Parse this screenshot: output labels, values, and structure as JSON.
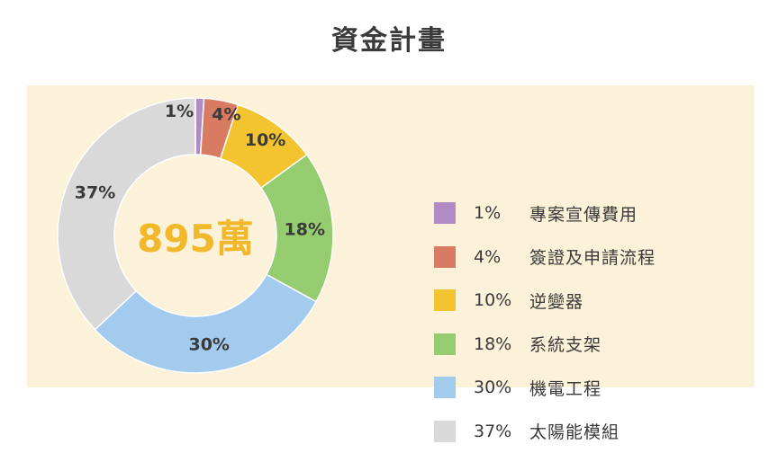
{
  "title": "資金計畫",
  "center_label": "895萬",
  "colors": {
    "background_panel": "#fcf1d9",
    "center_label": "#f0b82a",
    "text": "#3a3a3a"
  },
  "chart_data": {
    "type": "pie",
    "title": "資金計畫",
    "center_label": "895萬",
    "categories": [
      "專案宣傳費用",
      "簽證及申請流程",
      "逆變器",
      "系統支架",
      "機電工程",
      "太陽能模組"
    ],
    "values": [
      1,
      4,
      10,
      18,
      30,
      37
    ],
    "value_labels": [
      "1%",
      "4%",
      "10%",
      "18%",
      "30%",
      "37%"
    ],
    "colors": [
      "#b08bc4",
      "#d97b62",
      "#f4c430",
      "#95cc70",
      "#a3cbee",
      "#d9d9d9"
    ],
    "legend_position": "right"
  },
  "legend": [
    {
      "pct": "1%",
      "label": "專案宣傳費用",
      "color": "#b08bc4"
    },
    {
      "pct": "4%",
      "label": "簽證及申請流程",
      "color": "#d97b62"
    },
    {
      "pct": "10%",
      "label": "逆變器",
      "color": "#f4c430"
    },
    {
      "pct": "18%",
      "label": "系統支架",
      "color": "#95cc70"
    },
    {
      "pct": "30%",
      "label": "機電工程",
      "color": "#a3cbee"
    },
    {
      "pct": "37%",
      "label": "太陽能模組",
      "color": "#d9d9d9"
    }
  ]
}
